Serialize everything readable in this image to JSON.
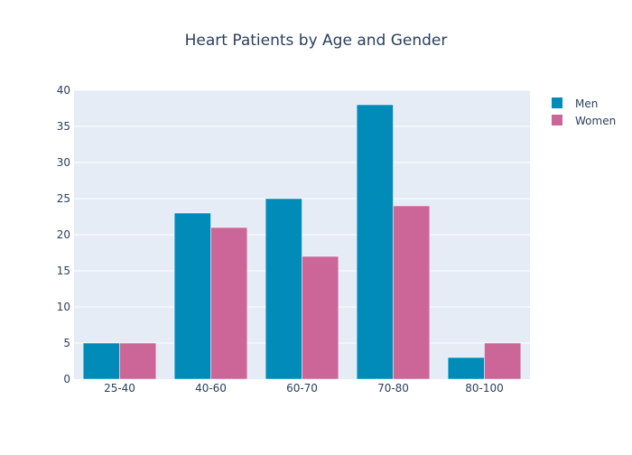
{
  "chart_data": {
    "type": "bar",
    "title": "Heart Patients by Age and Gender",
    "xlabel": "",
    "ylabel": "",
    "categories": [
      "25-40",
      "40-60",
      "60-70",
      "70-80",
      "80-100"
    ],
    "series": [
      {
        "name": "Men",
        "values": [
          5,
          23,
          25,
          38,
          3
        ],
        "color": "#008BB9"
      },
      {
        "name": "Women",
        "values": [
          5,
          21,
          17,
          24,
          5
        ],
        "color": "#CC6699"
      }
    ],
    "ylim": [
      0,
      40
    ],
    "yticks": [
      0,
      5,
      10,
      15,
      20,
      25,
      30,
      35,
      40
    ],
    "grid": true,
    "legend_position": "top-right"
  },
  "colors": {
    "plot_background": "#E5ECF6",
    "gridline": "#ffffff",
    "text": "#2A3F5F"
  }
}
